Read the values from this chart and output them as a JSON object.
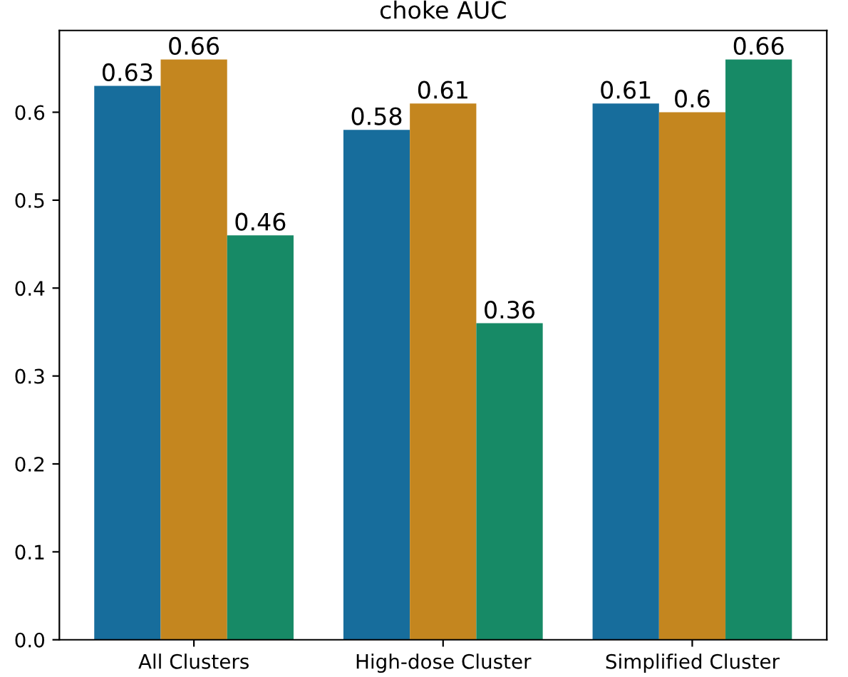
{
  "chart_data": {
    "type": "bar",
    "title": "choke AUC",
    "categories": [
      "All Clusters",
      "High-dose Cluster",
      "Simplified Cluster"
    ],
    "series": [
      {
        "color": "#176d9c",
        "values": [
          0.63,
          0.58,
          0.61
        ]
      },
      {
        "color": "#c4861f",
        "values": [
          0.66,
          0.61,
          0.6
        ]
      },
      {
        "color": "#178a66",
        "values": [
          0.46,
          0.36,
          0.66
        ]
      }
    ],
    "ylim": [
      0,
      0.693
    ],
    "yticks": [
      {
        "value": 0,
        "label": "0.0"
      },
      0.1,
      0.2,
      0.3,
      0.4,
      0.5,
      0.6
    ],
    "value_labels": [
      [
        "0.63",
        "0.58",
        "0.61"
      ],
      [
        "0.66",
        "0.61",
        "0.6"
      ],
      [
        "0.46",
        "0.36",
        "0.66"
      ]
    ],
    "grid": false,
    "legend": false
  }
}
